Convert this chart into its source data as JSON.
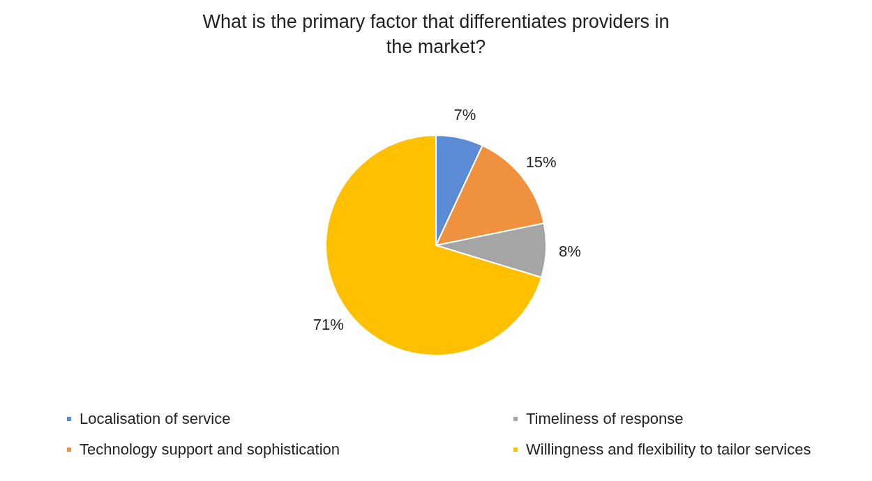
{
  "chart_data": {
    "type": "pie",
    "title": "What is the primary factor that differentiates providers in the market?",
    "categories": [
      "Localisation of service",
      "Technology support and sophistication",
      "Timeliness of response",
      "Willingness and flexibility to tailor services"
    ],
    "values": [
      7,
      15,
      8,
      71
    ],
    "colors": [
      "#5b8bd5",
      "#f0913f",
      "#a5a5a5",
      "#ffc000"
    ],
    "value_labels": [
      "7%",
      "15%",
      "8%",
      "71%"
    ],
    "legend": "bottom"
  }
}
